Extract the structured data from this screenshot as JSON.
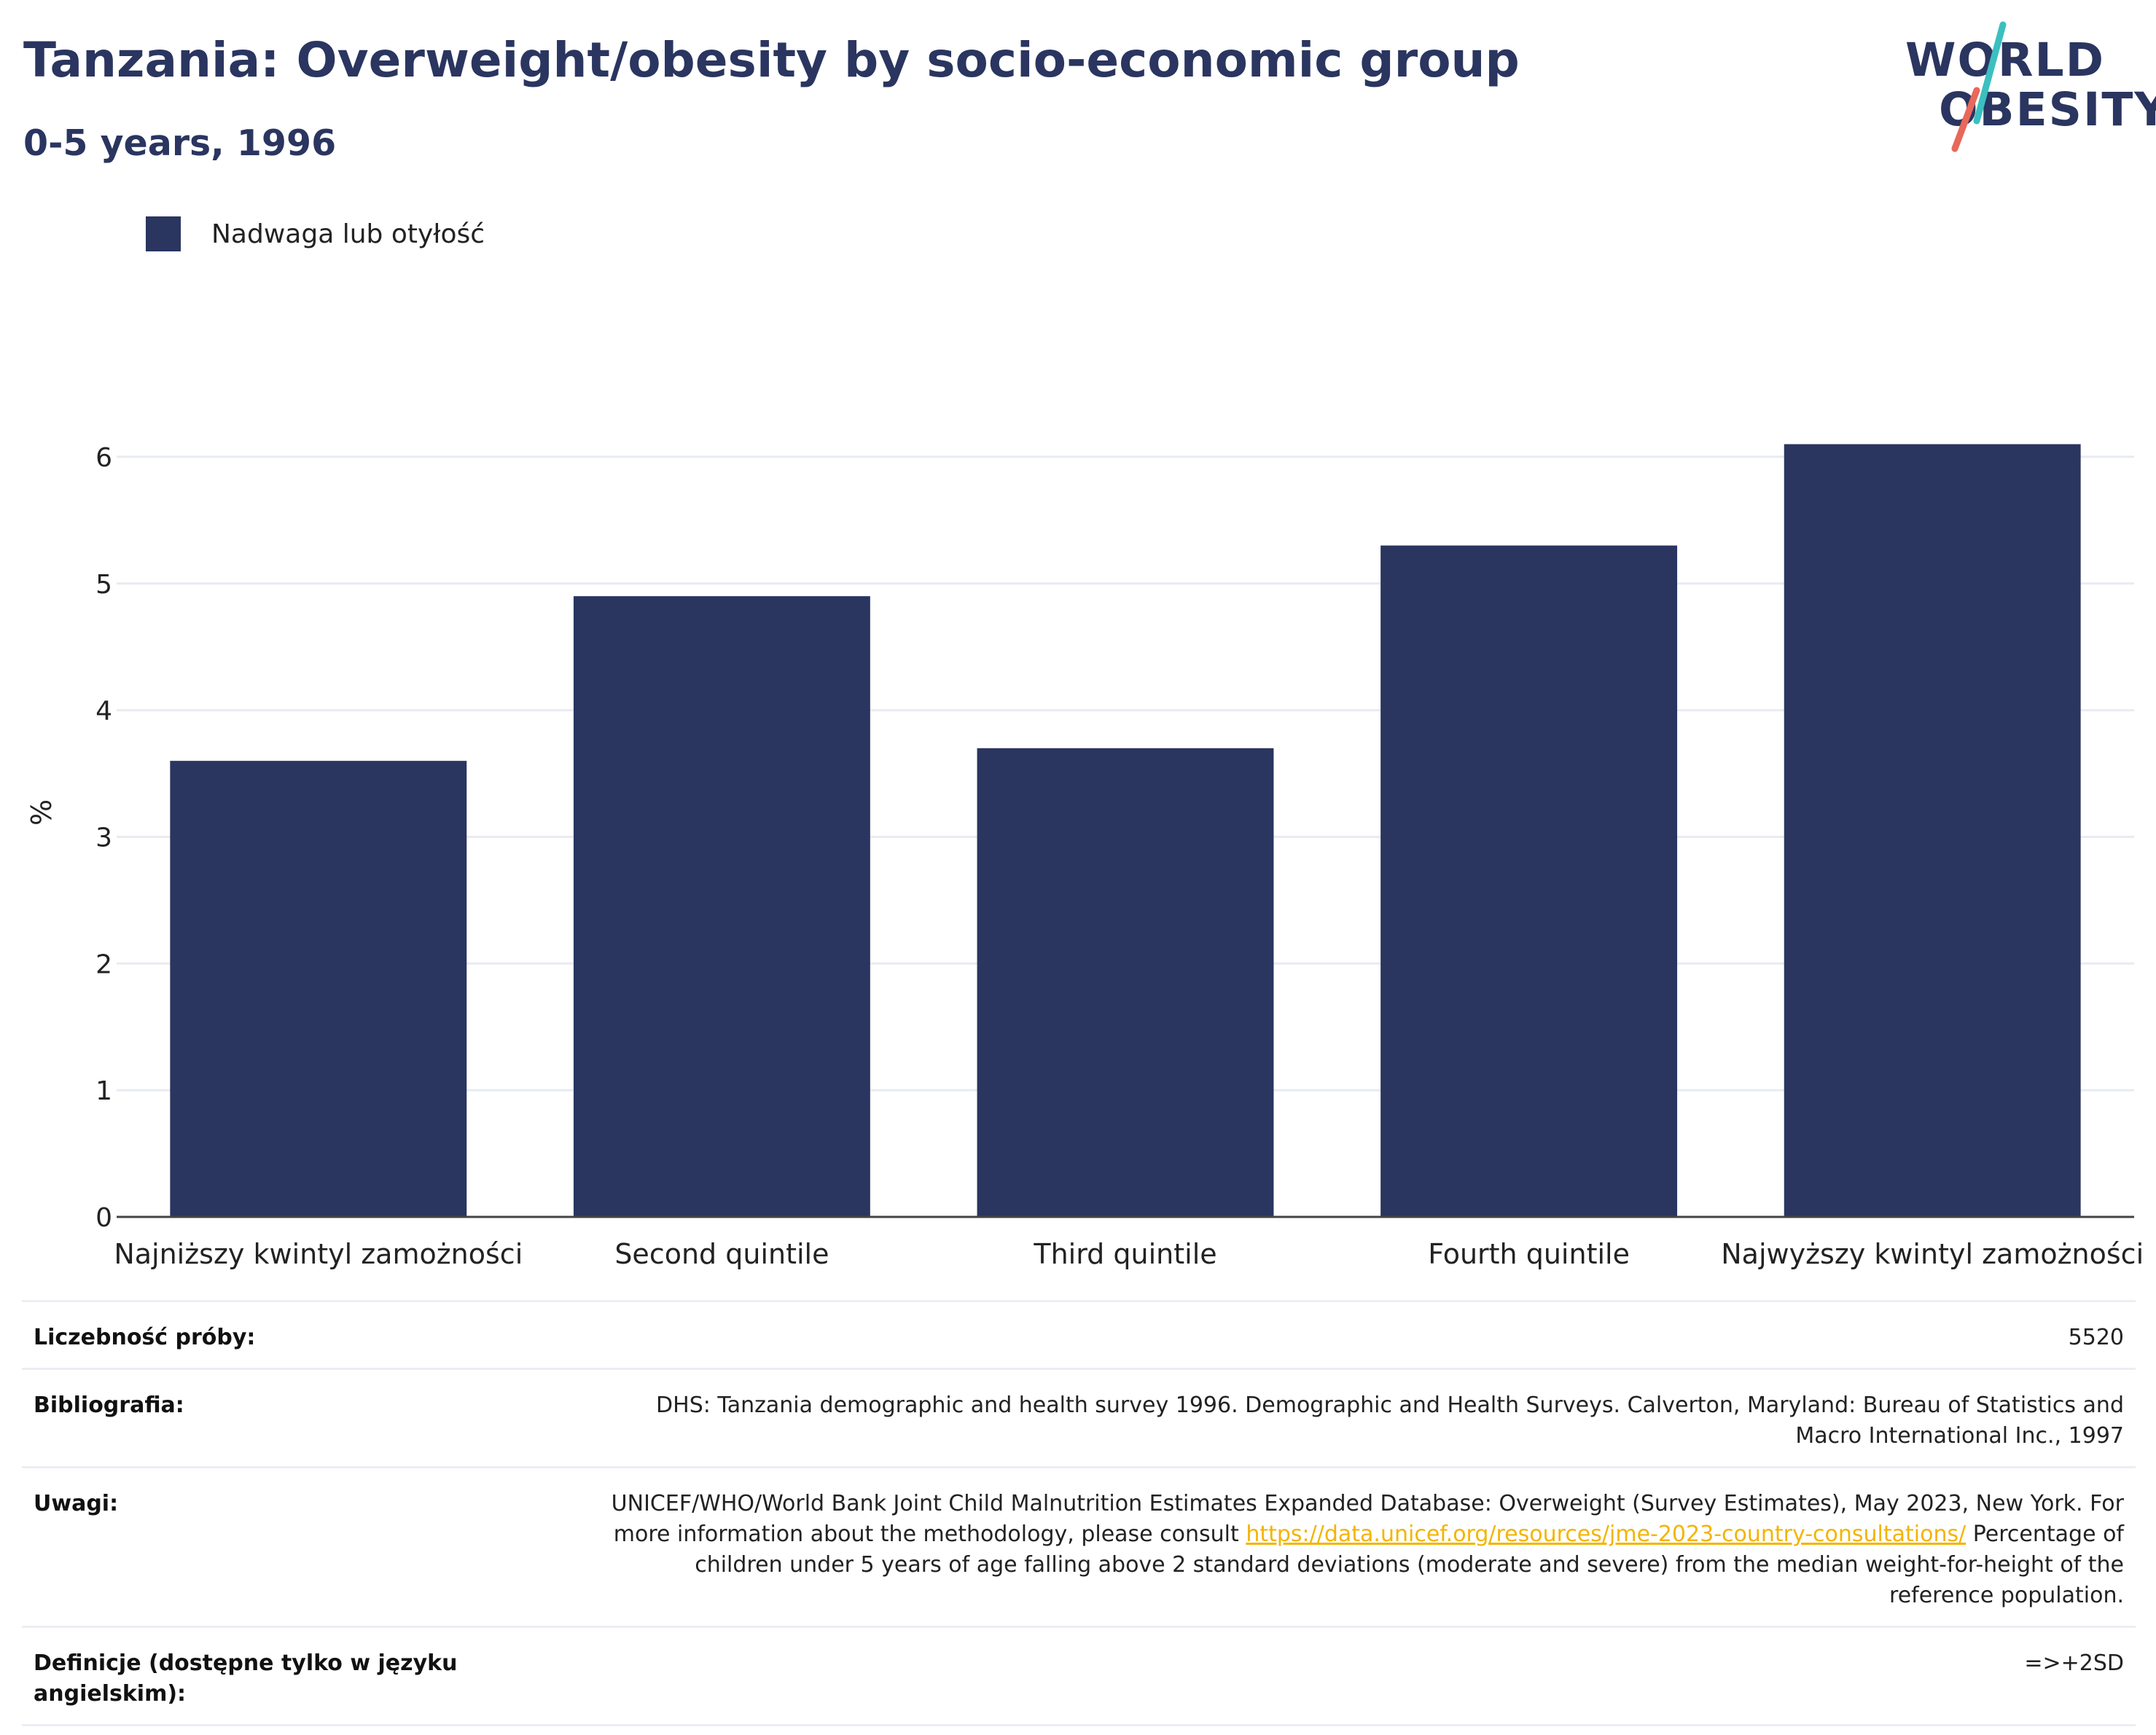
{
  "header": {
    "title": "Tanzania: Overweight/obesity by socio-economic group",
    "subtitle": "0-5 years, 1996"
  },
  "logo": {
    "line1": "WORLD",
    "line2": "OBESITY",
    "colors": {
      "text": "#2a3560",
      "slash_top": "#3bbfbf",
      "slash_bottom": "#e8685a"
    }
  },
  "legend": {
    "label": "Nadwaga lub otyłość",
    "color": "#2a3560"
  },
  "chart_data": {
    "type": "bar",
    "categories": [
      "Najniższy kwintyl zamożności",
      "Second quintile",
      "Third quintile",
      "Fourth quintile",
      "Najwyższy kwintyl zamożności"
    ],
    "series": [
      {
        "name": "Nadwaga lub otyłość",
        "values": [
          3.6,
          4.9,
          3.7,
          5.3,
          6.1
        ],
        "color": "#2a3560"
      }
    ],
    "ylabel": "%",
    "ylim": [
      0,
      6.5
    ],
    "yticks": [
      0,
      1,
      2,
      3,
      4,
      5,
      6
    ],
    "grid": true,
    "legend_position": "top-left"
  },
  "info": {
    "sample_label": "Liczebność próby:",
    "sample_value": "5520",
    "bibliography_label": "Bibliografia:",
    "bibliography_value": "DHS: Tanzania demographic and health survey 1996. Demographic and Health Surveys. Calverton, Maryland: Bureau of Statistics and Macro International Inc., 1997",
    "notes_label": "Uwagi:",
    "notes_text_before": "UNICEF/WHO/World Bank Joint Child Malnutrition Estimates Expanded Database: Overweight (Survey Estimates), May 2023, New York. For more information about the methodology, please consult",
    "notes_link": "https://data.unicef.org/resources/jme-2023-country-consultations/",
    "notes_text_after": "Percentage of children under 5 years of age falling above 2 standard deviations (moderate and severe) from the median weight-for-height of the reference population.",
    "definitions_label": "Definicje (dostępne tylko w języku angielskim):",
    "definitions_value": "=>+2SD"
  }
}
